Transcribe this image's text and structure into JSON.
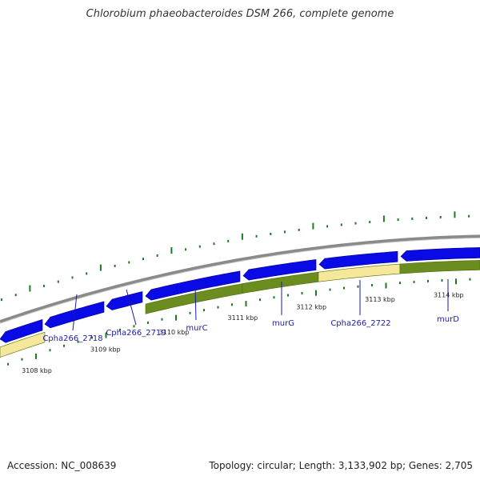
{
  "title": "Chlorobium phaeobacteroides DSM 266, complete genome",
  "footer": {
    "accession": "Accession: NC_008639",
    "summary": "Topology: circular; Length: 3,133,902 bp; Genes: 2,705"
  },
  "colors": {
    "forward_gene": "#0a0ae6",
    "orf_olive": "#6b8c1e",
    "orf_pale": "#f5e89a",
    "backbone": "#8a8a8a",
    "tick": "#1f7a1f",
    "label": "#1a1aa8"
  },
  "ruler": [
    {
      "label": "3108 kbp",
      "kbp": 3108
    },
    {
      "label": "3109 kbp",
      "kbp": 3109
    },
    {
      "label": "3110 kbp",
      "kbp": 3110
    },
    {
      "label": "3111 kbp",
      "kbp": 3111
    },
    {
      "label": "3112 kbp",
      "kbp": 3112
    },
    {
      "label": "3113 kbp",
      "kbp": 3113
    },
    {
      "label": "3114 kbp",
      "kbp": 3114
    }
  ],
  "genes": [
    {
      "name": "Cpha266_2718"
    },
    {
      "name": "Cpha266_2719"
    },
    {
      "name": "murC"
    },
    {
      "name": "murG"
    },
    {
      "name": "Cpha266_2722"
    },
    {
      "name": "murD"
    }
  ]
}
